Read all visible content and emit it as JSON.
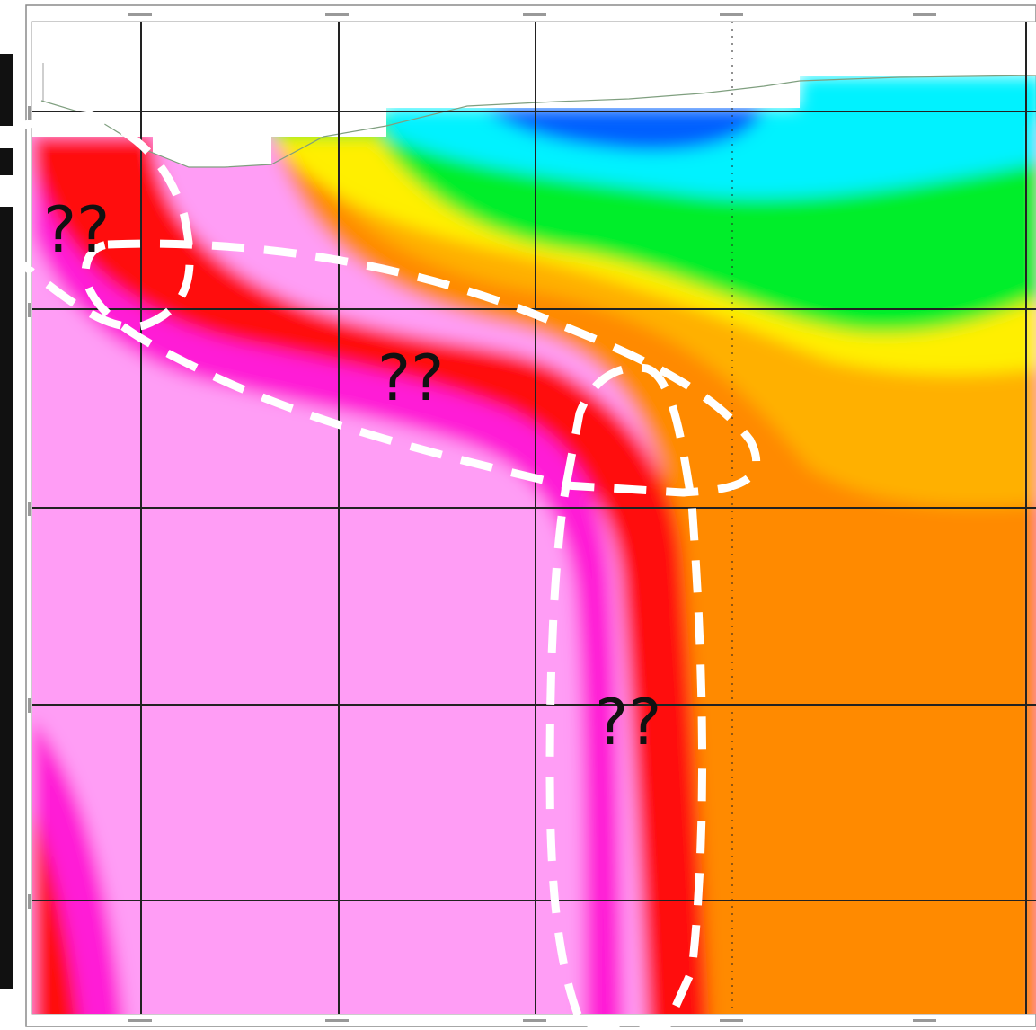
{
  "colors": {
    "pink": "#ff9df5",
    "magenta": "#ff1fd6",
    "red": "#ff0d0d",
    "orange": "#ff8a00",
    "light_orange": "#ffb000",
    "yellow": "#ffef00",
    "green": "#00ee2a",
    "cyan": "#00f2ff",
    "blue": "#0060ff",
    "grid": "#222222",
    "annotation": "#ffffff"
  },
  "annotations": {
    "zone_1": "??",
    "zone_2": "??",
    "zone_3": "??"
  }
}
